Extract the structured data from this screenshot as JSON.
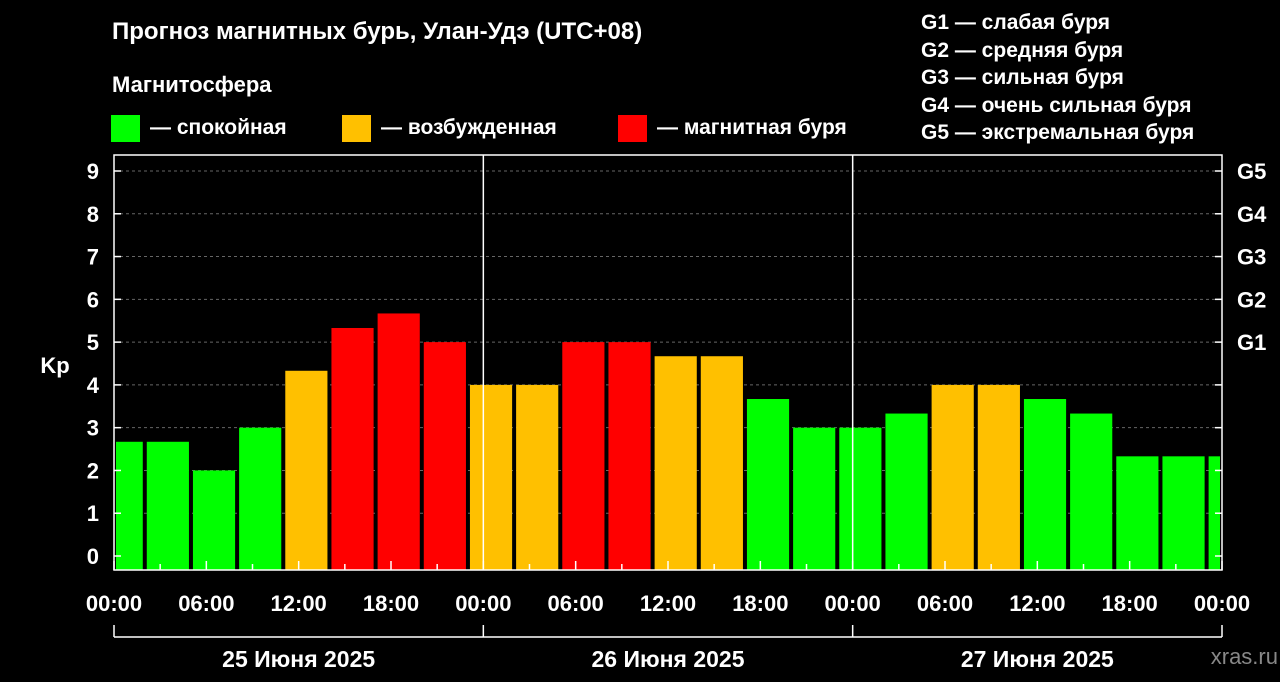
{
  "title": "Прогноз магнитных бурь, Улан-Удэ (UTC+08)",
  "magnetosphere_legend": {
    "title": "Магнитосфера",
    "items": [
      {
        "label": "— спокойная",
        "color": "#00ff00"
      },
      {
        "label": "— возбужденная",
        "color": "#ffc000"
      },
      {
        "label": "— магнитная буря",
        "color": "#ff0000"
      }
    ]
  },
  "storm_levels_legend": [
    "G1 — слабая буря",
    "G2 — средняя буря",
    "G3 — сильная буря",
    "G4 — очень сильная буря",
    "G5 — экстремальная буря"
  ],
  "watermark": "xras.ru",
  "chart_data": {
    "type": "bar",
    "ylabel": "Kp",
    "ylim": [
      0,
      9
    ],
    "yticks": [
      0,
      1,
      2,
      3,
      4,
      5,
      6,
      7,
      8,
      9
    ],
    "right_axis_labels": [
      {
        "value": 5,
        "label": "G1"
      },
      {
        "value": 6,
        "label": "G2"
      },
      {
        "value": 7,
        "label": "G3"
      },
      {
        "value": 8,
        "label": "G4"
      },
      {
        "value": 9,
        "label": "G5"
      }
    ],
    "grid": "horizontal dashed",
    "xrange_hours": [
      0,
      72
    ],
    "xtick_labels": [
      "00:00",
      "06:00",
      "12:00",
      "18:00",
      "00:00",
      "06:00",
      "12:00",
      "18:00",
      "00:00",
      "06:00",
      "12:00",
      "18:00",
      "00:00"
    ],
    "day_labels": [
      "25 Июня 2025",
      "26 Июня 2025",
      "27 Июня 2025"
    ],
    "colors": {
      "quiet": "#00ff00",
      "active": "#ffc000",
      "storm": "#ff0000"
    },
    "bars": [
      {
        "start": 0,
        "end": 2,
        "kp": 2.67,
        "level": "quiet"
      },
      {
        "start": 2,
        "end": 5,
        "kp": 2.67,
        "level": "quiet"
      },
      {
        "start": 5,
        "end": 8,
        "kp": 2.0,
        "level": "quiet"
      },
      {
        "start": 8,
        "end": 11,
        "kp": 3.0,
        "level": "quiet"
      },
      {
        "start": 11,
        "end": 14,
        "kp": 4.33,
        "level": "active"
      },
      {
        "start": 14,
        "end": 17,
        "kp": 5.33,
        "level": "storm"
      },
      {
        "start": 17,
        "end": 20,
        "kp": 5.67,
        "level": "storm"
      },
      {
        "start": 20,
        "end": 23,
        "kp": 5.0,
        "level": "storm"
      },
      {
        "start": 23,
        "end": 26,
        "kp": 4.0,
        "level": "active"
      },
      {
        "start": 26,
        "end": 29,
        "kp": 4.0,
        "level": "active"
      },
      {
        "start": 29,
        "end": 32,
        "kp": 5.0,
        "level": "storm"
      },
      {
        "start": 32,
        "end": 35,
        "kp": 5.0,
        "level": "storm"
      },
      {
        "start": 35,
        "end": 38,
        "kp": 4.67,
        "level": "active"
      },
      {
        "start": 38,
        "end": 41,
        "kp": 4.67,
        "level": "active"
      },
      {
        "start": 41,
        "end": 44,
        "kp": 3.67,
        "level": "quiet"
      },
      {
        "start": 44,
        "end": 47,
        "kp": 3.0,
        "level": "quiet"
      },
      {
        "start": 47,
        "end": 50,
        "kp": 3.0,
        "level": "quiet"
      },
      {
        "start": 50,
        "end": 53,
        "kp": 3.33,
        "level": "quiet"
      },
      {
        "start": 53,
        "end": 56,
        "kp": 4.0,
        "level": "active"
      },
      {
        "start": 56,
        "end": 59,
        "kp": 4.0,
        "level": "active"
      },
      {
        "start": 59,
        "end": 62,
        "kp": 3.67,
        "level": "quiet"
      },
      {
        "start": 62,
        "end": 65,
        "kp": 3.33,
        "level": "quiet"
      },
      {
        "start": 65,
        "end": 68,
        "kp": 2.33,
        "level": "quiet"
      },
      {
        "start": 68,
        "end": 71,
        "kp": 2.33,
        "level": "quiet"
      },
      {
        "start": 71,
        "end": 72,
        "kp": 2.33,
        "level": "quiet"
      }
    ]
  }
}
